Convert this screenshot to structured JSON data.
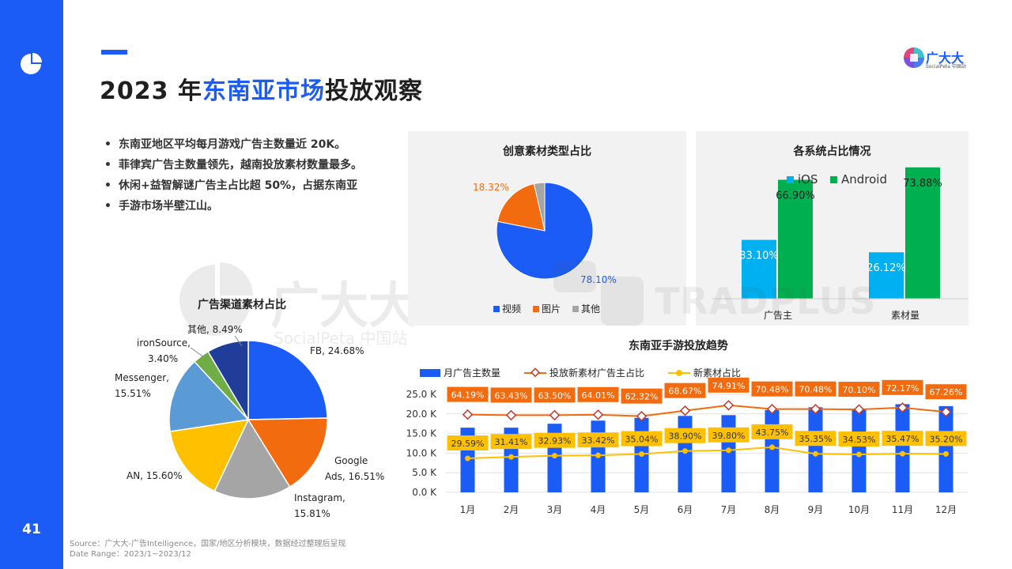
{
  "page": {
    "number": "41",
    "title_prefix": "2023 年",
    "title_highlight": "东南亚市场",
    "title_suffix": "投放观察",
    "brand_name": "广大大",
    "brand_sub": "SocialPeta 中国站",
    "watermark_1": "广大大",
    "watermark_1_sub": "SocialPeta 中国站",
    "watermark_2": "TRADPLUS"
  },
  "bullets": [
    "东南亚地区平均每月游戏广告主数量近 20K。",
    "菲律宾广告主数量领先，越南投放素材数量最多。",
    "休闲+益智解谜广告主占比超 50%，占据东南亚",
    "手游市场半壁江山。"
  ],
  "source": {
    "line1": "Source：广大大-广告Intelligence，国家/地区分析模块，数据经过整理后呈现",
    "line2": "Date Range：2023/1~2023/12"
  },
  "colors": {
    "brand_blue": "#1a5cf5",
    "orange": "#f26b0f",
    "gray": "#a5a5a5",
    "yellow": "#ffc000",
    "light_blue": "#5b9bd5",
    "green": "#70ad47",
    "navy": "#1f3d99",
    "ios": "#00b0f0",
    "android": "#00b050"
  },
  "chart_data": [
    {
      "id": "creative-type",
      "type": "pie",
      "title": "创意素材类型占比",
      "categories": [
        "视频",
        "图片",
        "其他"
      ],
      "values": [
        78.1,
        18.32,
        3.58
      ],
      "labels": [
        "78.10%",
        "18.32%",
        ""
      ],
      "colors": [
        "#1a5cf5",
        "#f26b0f",
        "#a5a5a5"
      ],
      "legend": "bottom"
    },
    {
      "id": "os-share",
      "type": "bar",
      "title": "各系统占比情况",
      "categories": [
        "广告主",
        "素材量"
      ],
      "series": [
        {
          "name": "iOS",
          "values": [
            33.1,
            26.12
          ],
          "labels": [
            "33.10%",
            "26.12%"
          ],
          "color": "#00b0f0"
        },
        {
          "name": "Android",
          "values": [
            66.9,
            73.88
          ],
          "labels": [
            "66.90%",
            "73.88%"
          ],
          "color": "#00b050"
        }
      ],
      "ylim": [
        0,
        80
      ],
      "legend": "top-left"
    },
    {
      "id": "channel-share",
      "type": "pie",
      "title": "广告渠道素材占比",
      "categories": [
        "FB",
        "Google Ads",
        "Instagram",
        "AN",
        "Messenger",
        "ironSource",
        "其他"
      ],
      "values": [
        24.68,
        16.51,
        15.81,
        15.6,
        15.51,
        3.4,
        8.49
      ],
      "labels": [
        [
          "FB, 24.68%"
        ],
        [
          "Google",
          "Ads, 16.51%"
        ],
        [
          "Instagram,",
          "15.81%"
        ],
        [
          "AN, 15.60%"
        ],
        [
          "Messenger,",
          "15.51%"
        ],
        [
          "ironSource,",
          "3.40%"
        ],
        [
          "其他, 8.49%"
        ]
      ],
      "colors": [
        "#1a5cf5",
        "#f26b0f",
        "#a5a5a5",
        "#ffc000",
        "#5b9bd5",
        "#70ad47",
        "#1f3d99"
      ]
    },
    {
      "id": "monthly-trend",
      "type": "bar",
      "title": "东南亚手游投放趋势",
      "categories": [
        "1月",
        "2月",
        "3月",
        "4月",
        "5月",
        "6月",
        "7月",
        "8月",
        "9月",
        "10月",
        "11月",
        "12月"
      ],
      "y_ticks": [
        "0.0 K",
        "5.0 K",
        "10.0 K",
        "15.0 K",
        "20.0 K",
        "25.0 K"
      ],
      "ylim": [
        0,
        25
      ],
      "y_unit": "K",
      "series": [
        {
          "name": "月广告主数量",
          "type": "bar",
          "color": "#1a5cf5",
          "values": [
            16.5,
            16.5,
            17.5,
            18.3,
            19.0,
            19.5,
            19.7,
            21.0,
            21.7,
            21.2,
            22.5,
            22.0
          ]
        },
        {
          "name": "投放新素材广告主占比",
          "type": "line",
          "color": "#f26b0f",
          "values": [
            64.19,
            63.43,
            63.5,
            64.01,
            62.32,
            68.67,
            74.91,
            70.48,
            70.48,
            70.1,
            72.17,
            67.26
          ],
          "labels": [
            "64.19%",
            "63.43%",
            "63.50%",
            "64.01%",
            "62.32%",
            "68.67%",
            "74.91%",
            "70.48%",
            "70.48%",
            "70.10%",
            "72.17%",
            "67.26%"
          ]
        },
        {
          "name": "新素材占比",
          "type": "line",
          "color": "#ffc000",
          "values": [
            29.59,
            31.41,
            32.93,
            33.42,
            35.04,
            38.9,
            39.8,
            43.75,
            35.35,
            34.53,
            35.47,
            35.2
          ],
          "labels": [
            "29.59%",
            "31.41%",
            "32.93%",
            "33.42%",
            "35.04%",
            "38.90%",
            "39.80%",
            "43.75%",
            "35.35%",
            "34.53%",
            "35.47%",
            "35.20%"
          ]
        }
      ],
      "legend": "top"
    }
  ]
}
